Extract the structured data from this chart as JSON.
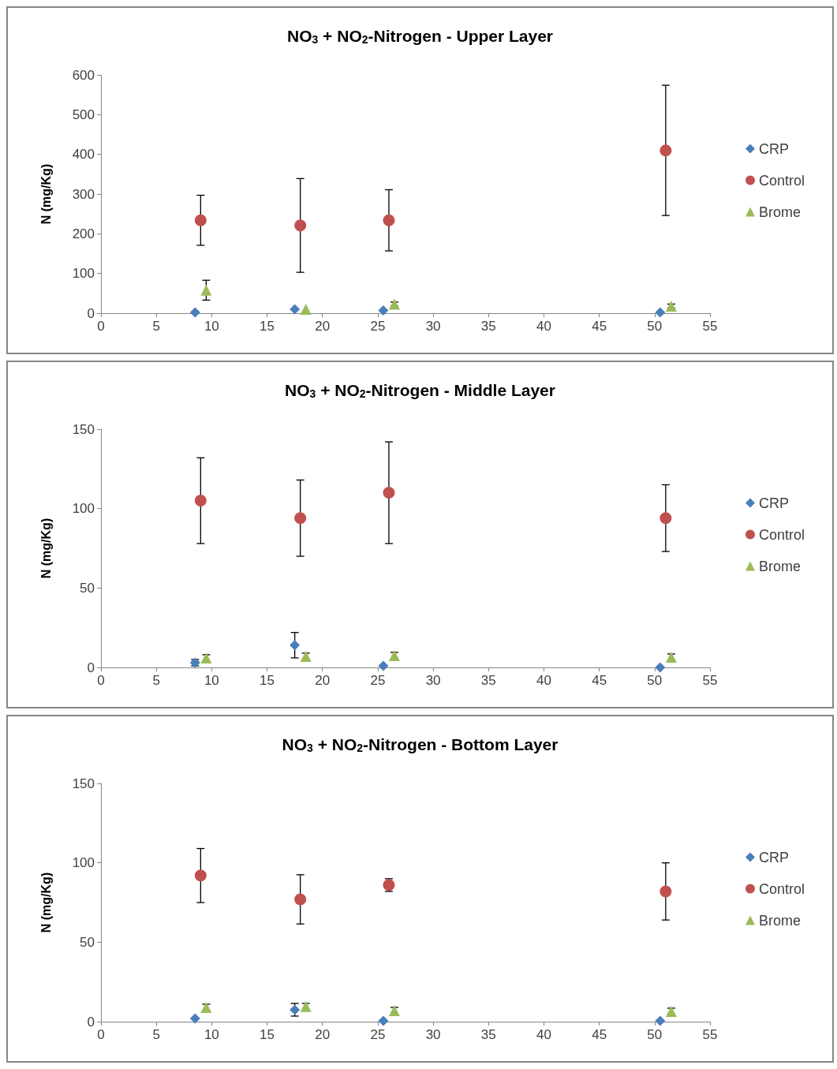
{
  "chart_data": [
    {
      "type": "scatter",
      "title": "NO$_{3}$ + NO$_{2}$-Nitrogen - Upper Layer",
      "ylabel": "N (mg/Kg)",
      "xlim": [
        0,
        55
      ],
      "xticks": [
        0,
        5,
        10,
        15,
        20,
        25,
        30,
        35,
        40,
        45,
        50,
        55
      ],
      "ylim": [
        0,
        600
      ],
      "yticks": [
        0,
        100,
        200,
        300,
        400,
        500,
        600
      ],
      "grid": false,
      "legend": "right",
      "series": [
        {
          "name": "CRP",
          "color": "#4a7ebb",
          "marker": "diamond",
          "x": [
            8.5,
            17.5,
            25.5,
            50.5
          ],
          "values": [
            2,
            10,
            7,
            2
          ],
          "errors": [
            null,
            null,
            null,
            null
          ]
        },
        {
          "name": "Control",
          "color": "#c0504d",
          "marker": "circle",
          "x": [
            9,
            18,
            26,
            51
          ],
          "values": [
            234,
            221,
            234,
            410
          ],
          "errors": [
            63,
            118,
            77,
            164
          ]
        },
        {
          "name": "Brome",
          "color": "#9bbb59",
          "marker": "triangle",
          "x": [
            9.5,
            18.5,
            26.5,
            51.5
          ],
          "values": [
            58,
            10,
            23,
            18
          ],
          "errors": [
            25,
            null,
            5,
            5
          ]
        }
      ]
    },
    {
      "type": "scatter",
      "title": "NO$_{3}$ + NO$_{2}$-Nitrogen - Middle Layer",
      "ylabel": "N (mg/Kg)",
      "xlim": [
        0,
        55
      ],
      "xticks": [
        0,
        5,
        10,
        15,
        20,
        25,
        30,
        35,
        40,
        45,
        50,
        55
      ],
      "ylim": [
        0,
        150
      ],
      "yticks": [
        0,
        50,
        100,
        150
      ],
      "grid": false,
      "legend": "right",
      "series": [
        {
          "name": "CRP",
          "color": "#4a7ebb",
          "marker": "diamond",
          "x": [
            8.5,
            17.5,
            25.5,
            50.5
          ],
          "values": [
            3,
            14,
            1,
            0
          ],
          "errors": [
            2,
            8,
            null,
            null
          ]
        },
        {
          "name": "Control",
          "color": "#c0504d",
          "marker": "circle",
          "x": [
            9,
            18,
            26,
            51
          ],
          "values": [
            105,
            94,
            110,
            94
          ],
          "errors": [
            27,
            24,
            32,
            21
          ]
        },
        {
          "name": "Brome",
          "color": "#9bbb59",
          "marker": "triangle",
          "x": [
            9.5,
            18.5,
            26.5,
            51.5
          ],
          "values": [
            6,
            7,
            7.5,
            6.5
          ],
          "errors": [
            2,
            2,
            2,
            2
          ]
        }
      ]
    },
    {
      "type": "scatter",
      "title": "NO$_{3}$ + NO$_{2}$-Nitrogen - Bottom Layer",
      "ylabel": "N (mg/Kg)",
      "xlim": [
        0,
        55
      ],
      "xticks": [
        0,
        5,
        10,
        15,
        20,
        25,
        30,
        35,
        40,
        45,
        50,
        55
      ],
      "ylim": [
        0,
        150
      ],
      "yticks": [
        0,
        50,
        100,
        150
      ],
      "grid": false,
      "legend": "right",
      "series": [
        {
          "name": "CRP",
          "color": "#4a7ebb",
          "marker": "diamond",
          "x": [
            8.5,
            17.5,
            25.5,
            50.5
          ],
          "values": [
            2,
            7.5,
            0.5,
            0.5
          ],
          "errors": [
            null,
            4,
            null,
            null
          ]
        },
        {
          "name": "Control",
          "color": "#c0504d",
          "marker": "circle",
          "x": [
            9,
            18,
            26,
            51
          ],
          "values": [
            92,
            77,
            86,
            82
          ],
          "errors": [
            17,
            15.5,
            4,
            18
          ]
        },
        {
          "name": "Brome",
          "color": "#9bbb59",
          "marker": "triangle",
          "x": [
            9.5,
            18.5,
            26.5,
            51.5
          ],
          "values": [
            9,
            9.5,
            7,
            6.5
          ],
          "errors": [
            2,
            2,
            2,
            2
          ]
        }
      ]
    }
  ]
}
